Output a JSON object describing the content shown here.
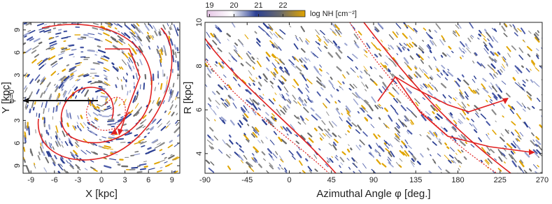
{
  "chart_data": [
    {
      "type": "image",
      "xlabel": "X [kpc]",
      "ylabel": "Y [kpc]",
      "xlim": [
        -10,
        10
      ],
      "xticks": [
        -9,
        -6,
        -3,
        0,
        3,
        6,
        9
      ],
      "ylim": [
        -10,
        10
      ],
      "yticks": [
        {
          "value": -9,
          "label": "9"
        },
        {
          "value": -6,
          "label": "6"
        },
        {
          "value": -3,
          "label": "3"
        },
        0,
        3,
        6,
        9
      ],
      "annotation": "φ=0°"
    },
    {
      "type": "image",
      "xlabel": "Azimuthal Angle φ [deg.]",
      "ylabel": "R [kpc]",
      "xlim": [
        -90,
        270
      ],
      "xticks": [
        -90,
        -45,
        0,
        45,
        90,
        135,
        180,
        225,
        270
      ],
      "ylim": [
        3.1,
        10
      ],
      "yticks": [
        4,
        6,
        8,
        10
      ],
      "colorbar": {
        "label": "log NH [cm⁻²]",
        "clim": [
          18.9,
          22.9
        ],
        "ticks": [
          19,
          20,
          21,
          22
        ],
        "colors": [
          "#e6c6e6",
          "#ffffff",
          "#2b3f93",
          "#6b6b6b",
          "#e0a400"
        ]
      }
    }
  ]
}
